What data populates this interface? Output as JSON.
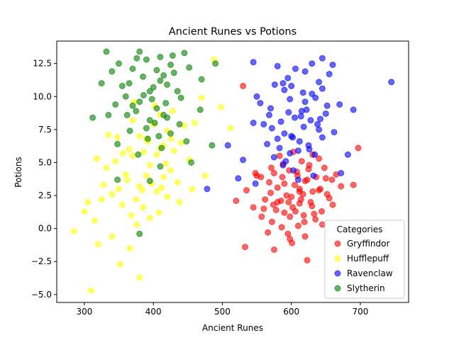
{
  "chart_data": {
    "type": "scatter",
    "title": "Ancient Runes vs Potions",
    "xlabel": "Ancient Runes",
    "ylabel": "Potions",
    "xlim": [
      260,
      770
    ],
    "ylim": [
      -5.6,
      14.2
    ],
    "xticks": [
      300,
      400,
      500,
      600,
      700
    ],
    "yticks": [
      -5.0,
      -2.5,
      0.0,
      2.5,
      5.0,
      7.5,
      10.0,
      12.5
    ],
    "xtick_labels": [
      "300",
      "400",
      "500",
      "600",
      "700"
    ],
    "ytick_labels": [
      "−5.0",
      "−2.5",
      "0.0",
      "2.5",
      "5.0",
      "7.5",
      "10.0",
      "12.5"
    ],
    "grid": false,
    "legend": {
      "title": "Categories",
      "placement": "lower-right"
    },
    "series": [
      {
        "name": "Gryffindor",
        "color": "#ff0000",
        "points": [
          [
            606,
            1.3
          ],
          [
            612,
            2.8
          ],
          [
            598,
            0.9
          ],
          [
            620,
            3.6
          ],
          [
            585,
            2.1
          ],
          [
            630,
            1.7
          ],
          [
            575,
            4.2
          ],
          [
            640,
            2.9
          ],
          [
            560,
            1.5
          ],
          [
            650,
            3.8
          ],
          [
            595,
            -0.4
          ],
          [
            610,
            0.2
          ],
          [
            625,
            4.5
          ],
          [
            580,
            3.1
          ],
          [
            615,
            5.1
          ],
          [
            600,
            2.4
          ],
          [
            590,
            1.2
          ],
          [
            635,
            0.7
          ],
          [
            570,
            2.7
          ],
          [
            655,
            2.3
          ],
          [
            545,
            1.6
          ],
          [
            665,
            4.1
          ],
          [
            605,
            3.3
          ],
          [
            620,
            -0.6
          ],
          [
            588,
            4.9
          ],
          [
            628,
            2.0
          ],
          [
            572,
            0.5
          ],
          [
            642,
            3.0
          ],
          [
            556,
            3.9
          ],
          [
            612,
            1.9
          ],
          [
            597,
            4.4
          ],
          [
            633,
            1.1
          ],
          [
            583,
            5.5
          ],
          [
            617,
            2.6
          ],
          [
            562,
            2.2
          ],
          [
            648,
            4.6
          ],
          [
            601,
            -1.1
          ],
          [
            623,
            3.7
          ],
          [
            578,
            1.4
          ],
          [
            640,
            5.3
          ],
          [
            550,
            4.0
          ],
          [
            660,
            1.8
          ],
          [
            593,
            2.5
          ],
          [
            608,
            4.3
          ],
          [
            586,
            0.1
          ],
          [
            631,
            2.8
          ],
          [
            568,
            3.5
          ],
          [
            645,
            0.3
          ],
          [
            603,
            5.8
          ],
          [
            618,
            1.0
          ],
          [
            535,
            2.9
          ],
          [
            672,
            3.2
          ],
          [
            614,
            2.2
          ],
          [
            590,
            3.4
          ],
          [
            626,
            4.8
          ],
          [
            574,
            1.8
          ],
          [
            652,
            2.6
          ],
          [
            598,
            -0.8
          ],
          [
            636,
            3.9
          ],
          [
            580,
            2.0
          ],
          [
            520,
            2.1
          ],
          [
            690,
            3.3
          ],
          [
            697,
            6.1
          ],
          [
            533,
            -1.4
          ],
          [
            575,
            -1.6
          ],
          [
            623,
            -2.4
          ],
          [
            530,
            10.8
          ],
          [
            548,
            4.2
          ],
          [
            566,
            -0.3
          ],
          [
            612,
            3.0
          ],
          [
            602,
            1.6
          ],
          [
            587,
            3.9
          ],
          [
            619,
            0.5
          ],
          [
            644,
            1.3
          ],
          [
            659,
            3.7
          ],
          [
            571,
            4.6
          ],
          [
            596,
            2.0
          ],
          [
            631,
            5.6
          ],
          [
            557,
            0.9
          ],
          [
            609,
            4.0
          ]
        ]
      },
      {
        "name": "Hufflepuff",
        "color": "#ffff00",
        "points": [
          [
            395,
            4.8
          ],
          [
            410,
            6.1
          ],
          [
            380,
            3.2
          ],
          [
            420,
            7.4
          ],
          [
            370,
            5.5
          ],
          [
            405,
            2.8
          ],
          [
            430,
            5.9
          ],
          [
            360,
            4.1
          ],
          [
            390,
            6.8
          ],
          [
            415,
            3.9
          ],
          [
            385,
            1.6
          ],
          [
            440,
            6.5
          ],
          [
            350,
            3.0
          ],
          [
            400,
            7.9
          ],
          [
            425,
            4.4
          ],
          [
            375,
            2.2
          ],
          [
            410,
            8.6
          ],
          [
            365,
            6.0
          ],
          [
            395,
            0.8
          ],
          [
            435,
            3.5
          ],
          [
            345,
            5.1
          ],
          [
            405,
            5.6
          ],
          [
            380,
            7.0
          ],
          [
            420,
            2.4
          ],
          [
            355,
            1.8
          ],
          [
            445,
            7.8
          ],
          [
            390,
            4.0
          ],
          [
            370,
            8.2
          ],
          [
            415,
            6.3
          ],
          [
            340,
            2.6
          ],
          [
            398,
            3.4
          ],
          [
            428,
            8.9
          ],
          [
            362,
            3.7
          ],
          [
            408,
            1.2
          ],
          [
            386,
            5.8
          ],
          [
            452,
            5.2
          ],
          [
            332,
            4.6
          ],
          [
            402,
            9.3
          ],
          [
            376,
            0.3
          ],
          [
            418,
            4.9
          ],
          [
            348,
            6.9
          ],
          [
            438,
            2.0
          ],
          [
            392,
            6.6
          ],
          [
            368,
            1.0
          ],
          [
            412,
            3.1
          ],
          [
            325,
            2.2
          ],
          [
            460,
            8.0
          ],
          [
            384,
            2.9
          ],
          [
            426,
            6.8
          ],
          [
            356,
            5.7
          ],
          [
            300,
            1.3
          ],
          [
            315,
            0.6
          ],
          [
            320,
            -1.2
          ],
          [
            328,
            3.3
          ],
          [
            352,
            -2.7
          ],
          [
            380,
            -3.7
          ],
          [
            310,
            -4.7
          ],
          [
            285,
            -0.2
          ],
          [
            470,
            9.9
          ],
          [
            488,
            12.8
          ],
          [
            498,
            9.2
          ],
          [
            512,
            7.6
          ],
          [
            475,
            4.0
          ],
          [
            340,
            -0.6
          ],
          [
            366,
            -1.5
          ],
          [
            305,
            2.0
          ],
          [
            335,
            7.1
          ],
          [
            318,
            5.3
          ],
          [
            372,
            9.6
          ],
          [
            456,
            3.0
          ]
        ]
      },
      {
        "name": "Ravenclaw",
        "color": "#0000ff",
        "points": [
          [
            605,
            8.4
          ],
          [
            620,
            9.6
          ],
          [
            590,
            7.2
          ],
          [
            630,
            10.2
          ],
          [
            580,
            6.8
          ],
          [
            615,
            8.9
          ],
          [
            640,
            7.5
          ],
          [
            570,
            9.1
          ],
          [
            600,
            10.8
          ],
          [
            625,
            6.3
          ],
          [
            595,
            11.4
          ],
          [
            650,
            8.7
          ],
          [
            560,
            7.9
          ],
          [
            610,
            5.9
          ],
          [
            635,
            9.9
          ],
          [
            585,
            8.1
          ],
          [
            620,
            11.9
          ],
          [
            575,
            5.4
          ],
          [
            645,
            6.9
          ],
          [
            555,
            9.5
          ],
          [
            600,
            7.0
          ],
          [
            628,
            8.2
          ],
          [
            590,
            10.5
          ],
          [
            612,
            6.6
          ],
          [
            640,
            11.1
          ],
          [
            568,
            8.6
          ],
          [
            652,
            9.3
          ],
          [
            583,
            6.1
          ],
          [
            618,
            7.7
          ],
          [
            598,
            9.8
          ],
          [
            545,
            8.0
          ],
          [
            662,
            7.3
          ],
          [
            606,
            12.1
          ],
          [
            634,
            5.6
          ],
          [
            576,
            10.9
          ],
          [
            622,
            9.0
          ],
          [
            592,
            5.1
          ],
          [
            645,
            10.6
          ],
          [
            565,
            6.4
          ],
          [
            614,
            8.5
          ],
          [
            603,
            4.4
          ],
          [
            638,
            7.9
          ],
          [
            580,
            12.3
          ],
          [
            626,
            6.0
          ],
          [
            596,
            8.8
          ],
          [
            655,
            11.7
          ],
          [
            550,
            10.0
          ],
          [
            670,
            9.4
          ],
          [
            588,
            4.8
          ],
          [
            630,
            12.5
          ],
          [
            545,
            12.6
          ],
          [
            660,
            12.4
          ],
          [
            645,
            12.9
          ],
          [
            745,
            11.1
          ],
          [
            690,
            9.0
          ],
          [
            478,
            3.0
          ],
          [
            508,
            6.3
          ],
          [
            523,
            3.8
          ],
          [
            530,
            5.2
          ],
          [
            548,
            3.4
          ],
          [
            672,
            4.2
          ],
          [
            682,
            5.6
          ],
          [
            610,
            3.7
          ],
          [
            632,
            4.0
          ],
          [
            588,
            11.0
          ],
          [
            602,
            6.9
          ],
          [
            617,
            10.3
          ],
          [
            572,
            7.6
          ],
          [
            642,
            8.3
          ],
          [
            598,
            5.7
          ]
        ]
      },
      {
        "name": "Slytherin",
        "color": "#008000",
        "points": [
          [
            395,
            10.4
          ],
          [
            410,
            11.2
          ],
          [
            380,
            9.6
          ],
          [
            420,
            10.9
          ],
          [
            370,
            12.1
          ],
          [
            405,
            9.1
          ],
          [
            430,
            11.8
          ],
          [
            360,
            10.0
          ],
          [
            390,
            12.8
          ],
          [
            415,
            8.6
          ],
          [
            385,
            11.5
          ],
          [
            440,
            9.9
          ],
          [
            350,
            12.5
          ],
          [
            400,
            10.7
          ],
          [
            425,
            12.4
          ],
          [
            375,
            8.9
          ],
          [
            410,
            13.0
          ],
          [
            365,
            11.0
          ],
          [
            395,
            8.2
          ],
          [
            435,
            10.4
          ],
          [
            345,
            9.4
          ],
          [
            405,
            12.0
          ],
          [
            380,
            13.4
          ],
          [
            420,
            8.4
          ],
          [
            355,
            10.8
          ],
          [
            445,
            13.3
          ],
          [
            390,
            7.6
          ],
          [
            370,
            9.3
          ],
          [
            415,
            11.6
          ],
          [
            340,
            11.9
          ],
          [
            398,
            9.8
          ],
          [
            428,
            13.1
          ],
          [
            362,
            8.6
          ],
          [
            408,
            7.0
          ],
          [
            386,
            10.1
          ],
          [
            452,
            12.2
          ],
          [
            332,
            13.4
          ],
          [
            402,
            8.0
          ],
          [
            376,
            12.9
          ],
          [
            418,
            9.5
          ],
          [
            348,
            6.4
          ],
          [
            438,
            7.9
          ],
          [
            392,
            6.8
          ],
          [
            366,
            7.4
          ],
          [
            412,
            6.1
          ],
          [
            425,
            7.2
          ],
          [
            448,
            6.6
          ],
          [
            470,
            11.3
          ],
          [
            485,
            6.3
          ],
          [
            455,
            5.0
          ],
          [
            378,
            5.6
          ],
          [
            410,
            4.7
          ],
          [
            348,
            3.7
          ],
          [
            380,
            -0.4
          ],
          [
            395,
            3.6
          ],
          [
            335,
            8.6
          ],
          [
            325,
            11.0
          ],
          [
            312,
            8.4
          ],
          [
            490,
            12.5
          ],
          [
            468,
            9.0
          ]
        ]
      }
    ]
  }
}
